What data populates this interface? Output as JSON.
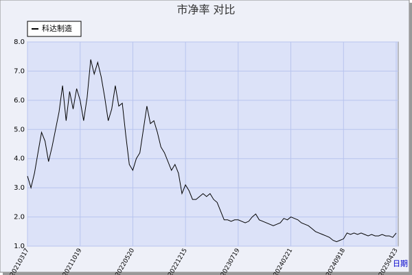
{
  "chart_data": {
    "type": "line",
    "title": "市净率  对比",
    "x_label": "日期",
    "categories": [
      "20210317",
      null,
      null,
      null,
      null,
      null,
      null,
      null,
      null,
      null,
      null,
      null,
      null,
      null,
      null,
      "20211019",
      null,
      null,
      null,
      null,
      null,
      null,
      null,
      null,
      null,
      null,
      null,
      null,
      null,
      null,
      "20220520",
      null,
      null,
      null,
      null,
      null,
      null,
      null,
      null,
      null,
      null,
      null,
      null,
      null,
      null,
      "20221215",
      null,
      null,
      null,
      null,
      null,
      null,
      null,
      null,
      null,
      null,
      null,
      null,
      null,
      null,
      "20230719",
      null,
      null,
      null,
      null,
      null,
      null,
      null,
      null,
      null,
      null,
      null,
      null,
      null,
      null,
      "20240221",
      null,
      null,
      null,
      null,
      null,
      null,
      null,
      null,
      null,
      null,
      null,
      null,
      null,
      null,
      "20240918",
      null,
      null,
      null,
      null,
      null,
      null,
      null,
      null,
      null,
      null,
      null,
      null,
      null,
      null,
      "20250423"
    ],
    "series": [
      {
        "name": "科达制造",
        "color": "#000000",
        "values": [
          3.4,
          3.0,
          3.5,
          4.2,
          4.9,
          4.6,
          3.9,
          4.4,
          5.0,
          5.6,
          6.5,
          5.3,
          6.3,
          5.7,
          6.4,
          6.0,
          5.3,
          6.1,
          7.4,
          6.9,
          7.3,
          6.8,
          6.1,
          5.3,
          5.7,
          6.5,
          5.8,
          5.9,
          4.8,
          3.8,
          3.6,
          4.0,
          4.2,
          5.0,
          5.8,
          5.2,
          5.3,
          4.9,
          4.4,
          4.2,
          3.9,
          3.6,
          3.8,
          3.5,
          2.8,
          3.1,
          2.9,
          2.6,
          2.6,
          2.7,
          2.8,
          2.7,
          2.8,
          2.6,
          2.5,
          2.2,
          1.9,
          1.9,
          1.85,
          1.9,
          1.9,
          1.85,
          1.8,
          1.85,
          2.0,
          2.1,
          1.9,
          1.85,
          1.8,
          1.75,
          1.7,
          1.75,
          1.8,
          1.95,
          1.9,
          2.0,
          1.95,
          1.9,
          1.8,
          1.75,
          1.7,
          1.6,
          1.5,
          1.45,
          1.4,
          1.35,
          1.3,
          1.2,
          1.15,
          1.2,
          1.25,
          1.45,
          1.4,
          1.45,
          1.4,
          1.45,
          1.4,
          1.35,
          1.4,
          1.35,
          1.35,
          1.4,
          1.35,
          1.35,
          1.3,
          1.45
        ]
      }
    ],
    "ylim": [
      1.0,
      8.0
    ],
    "yticks": [
      {
        "value": 1,
        "label": "1.0"
      },
      {
        "value": 2,
        "label": "2.0"
      },
      {
        "value": 3,
        "label": "3.0"
      },
      {
        "value": 4,
        "label": "4.0"
      },
      {
        "value": 5,
        "label": "5.0"
      },
      {
        "value": 6,
        "label": "6.0"
      },
      {
        "value": 7,
        "label": "7.0"
      },
      {
        "value": 8,
        "label": "8.0"
      }
    ],
    "grid": true
  }
}
